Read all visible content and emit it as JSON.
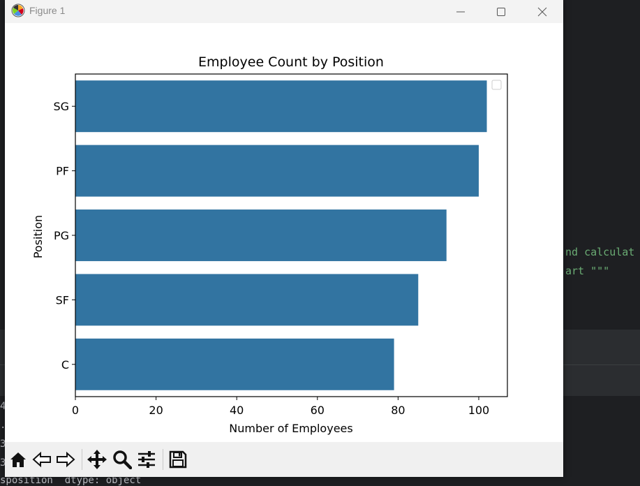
{
  "window": {
    "title": "Figure 1"
  },
  "background": {
    "code_lines": [
      "nd calculat",
      "art \"\"\""
    ],
    "terminal_lines": [
      "4",
      ".",
      "3",
      "3",
      "sposition  dtype: object"
    ]
  },
  "toolbar": {
    "icons": [
      "home-icon",
      "back-icon",
      "forward-icon",
      "pan-icon",
      "zoom-icon",
      "configure-icon",
      "save-icon"
    ]
  },
  "colors": {
    "bar": "#3274a1",
    "code_green": "#6aab73"
  },
  "chart_data": {
    "type": "bar",
    "orientation": "horizontal",
    "title": "Employee Count by Position",
    "xlabel": "Number of Employees",
    "ylabel": "Position",
    "categories": [
      "SG",
      "PF",
      "PG",
      "SF",
      "C"
    ],
    "values": [
      102,
      100,
      92,
      85,
      79
    ],
    "xlim": [
      0,
      107.1
    ],
    "xticks": [
      0,
      20,
      40,
      60,
      80,
      100
    ],
    "legend": "top-right (empty)",
    "grid": false
  }
}
